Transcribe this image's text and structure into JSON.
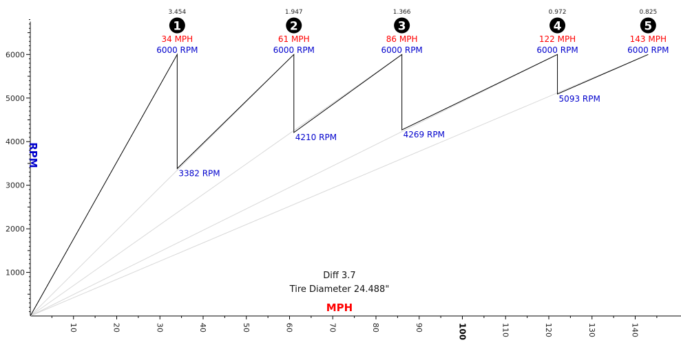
{
  "chart_data": {
    "type": "line",
    "xlabel": "MPH",
    "ylabel": "RPM",
    "xlim": [
      0,
      146
    ],
    "ylim": [
      0,
      6800
    ],
    "x_ticks": [
      10,
      20,
      30,
      40,
      50,
      60,
      70,
      80,
      90,
      100,
      110,
      120,
      130,
      140
    ],
    "y_ticks": [
      1000,
      2000,
      3000,
      4000,
      5000,
      6000
    ],
    "notes": [
      "Diff 3.7",
      "Tire Diameter 24.488\""
    ],
    "gears": [
      {
        "number": "1",
        "ratio": "3.454",
        "shift_mph": 34,
        "shift_mph_label": "34 MPH",
        "shift_rpm_label": "6000 RPM",
        "drop_rpm": 3382,
        "drop_rpm_label": "3382 RPM"
      },
      {
        "number": "2",
        "ratio": "1.947",
        "shift_mph": 61,
        "shift_mph_label": "61 MPH",
        "shift_rpm_label": "6000 RPM",
        "drop_rpm": 4210,
        "drop_rpm_label": "4210 RPM"
      },
      {
        "number": "3",
        "ratio": "1.366",
        "shift_mph": 86,
        "shift_mph_label": "86 MPH",
        "shift_rpm_label": "6000 RPM",
        "drop_rpm": 4269,
        "drop_rpm_label": "4269 RPM"
      },
      {
        "number": "4",
        "ratio": "0.972",
        "shift_mph": 122,
        "shift_mph_label": "122 MPH",
        "shift_rpm_label": "6000 RPM",
        "drop_rpm": 5093,
        "drop_rpm_label": "5093 RPM"
      },
      {
        "number": "5",
        "ratio": "0.825",
        "shift_mph": 143,
        "shift_mph_label": "143 MPH",
        "shift_rpm_label": "6000 RPM",
        "drop_rpm": null,
        "drop_rpm_label": ""
      }
    ],
    "shift_rpm": 6000,
    "colors": {
      "mph": "#ff0000",
      "rpm": "#0000cc",
      "curve": "#000000",
      "guide": "#d8d8d8"
    }
  }
}
